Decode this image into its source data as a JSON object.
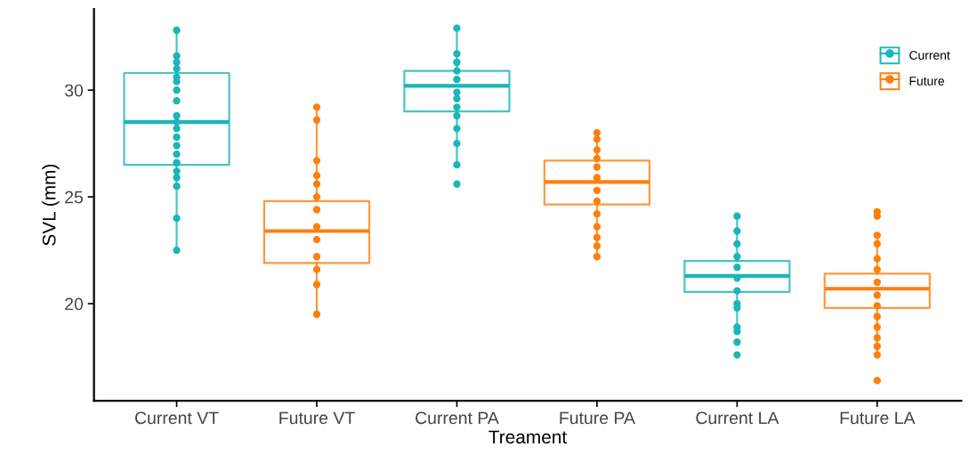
{
  "chart_data": {
    "type": "box",
    "xlabel": "Treament",
    "ylabel": "SVL (mm)",
    "categories": [
      "Current VT",
      "Future VT",
      "Current PA",
      "Future PA",
      "Current LA",
      "Future LA"
    ],
    "ylim": [
      15.45,
      33.8
    ],
    "yticks": [
      20,
      25,
      30
    ],
    "grid": false,
    "legend": "top right",
    "marker": "circle",
    "series": [
      {
        "name": "Current",
        "color": "#1ab6b9",
        "boxes": [
          {
            "low": 22.4,
            "q1": 26.5,
            "median": 28.5,
            "q3": 30.8,
            "high": 32.8
          },
          null,
          {
            "low": 26.5,
            "q1": 29.0,
            "median": 30.2,
            "q3": 30.9,
            "high": 32.9
          },
          null,
          {
            "low": 18.9,
            "q1": 20.55,
            "median": 21.3,
            "q3": 22.0,
            "high": 24.1
          },
          null
        ]
      },
      {
        "name": "Future",
        "color": "#ff7f0e",
        "boxes": [
          null,
          {
            "low": 19.5,
            "q1": 21.9,
            "median": 23.4,
            "q3": 24.8,
            "high": 29.2
          },
          null,
          {
            "low": 22.25,
            "q1": 24.65,
            "median": 25.7,
            "q3": 26.7,
            "high": 28.0
          },
          null,
          {
            "low": 17.6,
            "q1": 19.8,
            "median": 20.7,
            "q3": 21.4,
            "high": 23.2
          }
        ]
      },
      {
        "type": "scatter",
        "color": "#1ab6b9",
        "x": [
          "Current VT",
          "Current VT",
          "Current VT",
          "Current VT",
          "Current VT",
          "Current VT",
          "Current VT",
          "Current VT",
          "Current VT",
          "Current VT",
          "Current VT",
          "Current VT",
          "Current VT",
          "Current VT",
          "Current VT",
          "Current VT",
          "Current VT",
          "Current VT",
          "Current VT",
          "Current VT",
          "Current PA",
          "Current PA",
          "Current PA",
          "Current PA",
          "Current PA",
          "Current PA",
          "Current PA",
          "Current PA",
          "Current PA",
          "Current PA",
          "Current PA",
          "Current PA",
          "Current PA",
          "Current LA",
          "Current LA",
          "Current LA",
          "Current LA",
          "Current LA",
          "Current LA",
          "Current LA",
          "Current LA",
          "Current LA",
          "Current LA",
          "Current LA",
          "Current LA",
          "Current LA"
        ],
        "values": [
          32.8,
          31.6,
          31.3,
          31.0,
          30.6,
          30.4,
          30.0,
          29.5,
          28.8,
          28.5,
          28.2,
          27.8,
          27.4,
          27.0,
          26.6,
          26.2,
          25.9,
          25.5,
          24.0,
          22.5,
          32.9,
          31.7,
          31.3,
          30.9,
          30.5,
          29.9,
          29.6,
          29.2,
          28.8,
          28.2,
          27.5,
          26.5,
          25.6,
          24.1,
          23.4,
          22.8,
          22.2,
          21.7,
          21.2,
          20.6,
          20.0,
          19.8,
          18.9,
          18.7,
          18.2,
          17.6
        ]
      },
      {
        "type": "scatter",
        "color": "#ff7f0e",
        "x": [
          "Future VT",
          "Future VT",
          "Future VT",
          "Future VT",
          "Future VT",
          "Future VT",
          "Future VT",
          "Future VT",
          "Future VT",
          "Future VT",
          "Future VT",
          "Future VT",
          "Future VT",
          "Future PA",
          "Future PA",
          "Future PA",
          "Future PA",
          "Future PA",
          "Future PA",
          "Future PA",
          "Future PA",
          "Future PA",
          "Future PA",
          "Future PA",
          "Future PA",
          "Future PA",
          "Future LA",
          "Future LA",
          "Future LA",
          "Future LA",
          "Future LA",
          "Future LA",
          "Future LA",
          "Future LA",
          "Future LA",
          "Future LA",
          "Future LA",
          "Future LA",
          "Future LA",
          "Future LA",
          "Future LA"
        ],
        "values": [
          29.2,
          28.6,
          26.7,
          26.0,
          25.6,
          25.0,
          24.4,
          23.6,
          23.0,
          22.2,
          21.6,
          20.9,
          19.5,
          28.0,
          27.7,
          27.2,
          26.8,
          26.4,
          25.9,
          25.3,
          24.8,
          24.2,
          23.6,
          23.1,
          22.7,
          22.2,
          24.3,
          24.1,
          23.2,
          22.8,
          22.1,
          21.6,
          21.0,
          20.4,
          19.9,
          19.4,
          18.9,
          18.4,
          18.0,
          17.6,
          16.4
        ]
      }
    ]
  }
}
